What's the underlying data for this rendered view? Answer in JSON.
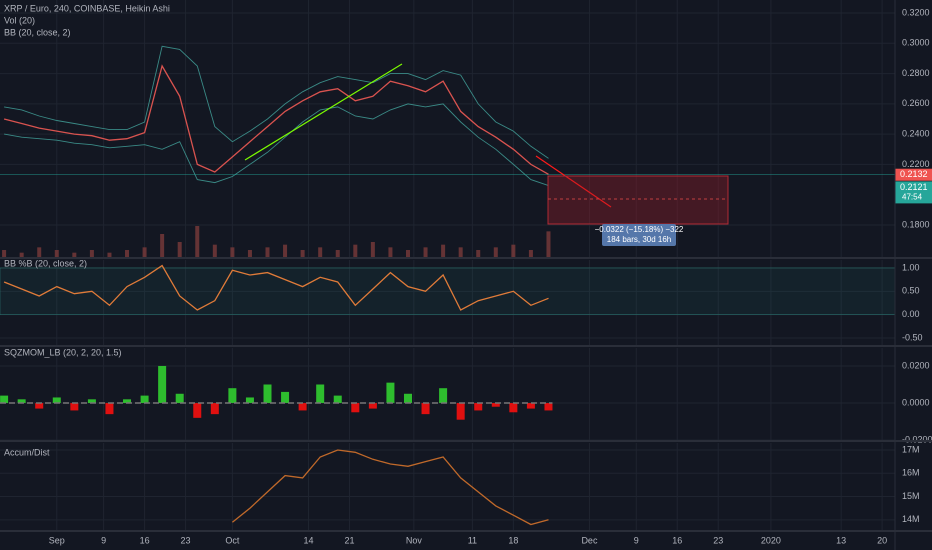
{
  "chart_data": [
    {
      "type": "line",
      "title": "XRP / Euro, 240, COINBASE, Heikin Ashi",
      "indicators": [
        "Vol (20)",
        "BB (20, close, 2)"
      ],
      "x": [
        -9,
        -6,
        -3,
        0,
        3,
        6,
        9,
        12,
        15,
        18,
        21,
        24,
        27,
        30,
        33,
        36,
        39,
        42,
        45,
        48,
        51,
        54,
        57,
        60,
        63,
        66,
        69,
        72,
        75,
        78,
        81,
        84
      ],
      "xlim": [
        -9.7,
        143.2
      ],
      "xticks": [
        {
          "value": 0,
          "label": "Sep"
        },
        {
          "value": 8,
          "label": "9"
        },
        {
          "value": 15,
          "label": "16"
        },
        {
          "value": 22,
          "label": "23"
        },
        {
          "value": 30,
          "label": "Oct"
        },
        {
          "value": 43,
          "label": "14"
        },
        {
          "value": 50,
          "label": "21"
        },
        {
          "value": 61,
          "label": "Nov"
        },
        {
          "value": 71,
          "label": "11"
        },
        {
          "value": 78,
          "label": "18"
        },
        {
          "value": 91,
          "label": "Dec"
        },
        {
          "value": 99,
          "label": "9"
        },
        {
          "value": 106,
          "label": "16"
        },
        {
          "value": 113,
          "label": "23"
        },
        {
          "value": 122,
          "label": "2020"
        },
        {
          "value": 134,
          "label": "13"
        },
        {
          "value": 141,
          "label": "20"
        }
      ],
      "ylim": [
        0.1582,
        0.3286
      ],
      "yticks": [
        {
          "value": 0.32,
          "label": "0.3200"
        },
        {
          "value": 0.3,
          "label": "0.3000"
        },
        {
          "value": 0.28,
          "label": "0.2800"
        },
        {
          "value": 0.26,
          "label": "0.2600"
        },
        {
          "value": 0.24,
          "label": "0.2400"
        },
        {
          "value": 0.22,
          "label": "0.2200"
        },
        {
          "value": 0.18,
          "label": "0.1800"
        }
      ],
      "series": [
        {
          "color": "#d9534f",
          "values": [
            0.25,
            0.247,
            0.244,
            0.242,
            0.24,
            0.239,
            0.236,
            0.237,
            0.241,
            0.285,
            0.265,
            0.22,
            0.215,
            0.225,
            0.235,
            0.245,
            0.255,
            0.262,
            0.268,
            0.27,
            0.262,
            0.265,
            0.275,
            0.272,
            0.268,
            0.275,
            0.255,
            0.245,
            0.238,
            0.23,
            0.22,
            0.2135
          ]
        },
        {
          "color": "#3a8a86",
          "values": [
            0.258,
            0.256,
            0.252,
            0.249,
            0.247,
            0.245,
            0.243,
            0.243,
            0.248,
            0.298,
            0.296,
            0.285,
            0.245,
            0.235,
            0.242,
            0.25,
            0.26,
            0.268,
            0.274,
            0.278,
            0.276,
            0.274,
            0.28,
            0.28,
            0.276,
            0.282,
            0.279,
            0.26,
            0.248,
            0.242,
            0.232,
            0.224
          ]
        },
        {
          "color": "#3a8a86",
          "values": [
            0.24,
            0.238,
            0.237,
            0.236,
            0.234,
            0.233,
            0.231,
            0.232,
            0.233,
            0.23,
            0.235,
            0.21,
            0.208,
            0.212,
            0.22,
            0.228,
            0.238,
            0.248,
            0.256,
            0.258,
            0.252,
            0.25,
            0.256,
            0.26,
            0.258,
            0.26,
            0.248,
            0.238,
            0.23,
            0.22,
            0.21,
            0.206
          ]
        }
      ],
      "volume": {
        "color": "#7a3b3b",
        "values": [
          3,
          2,
          4,
          3,
          2,
          3,
          2,
          3,
          4,
          9,
          6,
          12,
          5,
          4,
          3,
          4,
          5,
          3,
          4,
          3,
          5,
          6,
          4,
          3,
          4,
          5,
          4,
          3,
          4,
          5,
          3,
          10
        ]
      },
      "last_price": {
        "value": 0.2132,
        "label": "0.2132",
        "color": "#ef5350"
      },
      "bb_price": {
        "value": 0.2121,
        "label": "0.2121",
        "color": "#26a69a"
      },
      "countdown": "47:54",
      "measure": [
        "−0.0322 (−15.18%) −322",
        "184 bars, 30d 16h"
      ]
    },
    {
      "type": "line",
      "title": "BB %B (20, close, 2)",
      "ylim": [
        -0.67,
        1.17
      ],
      "yticks": [
        {
          "value": 1,
          "label": "1.00"
        },
        {
          "value": 0.5,
          "label": "0.50"
        },
        {
          "value": 0,
          "label": "0.00"
        },
        {
          "value": -0.5,
          "label": "-0.50"
        }
      ],
      "series": [
        {
          "color": "#e07b39",
          "values": [
            0.7,
            0.55,
            0.4,
            0.6,
            0.45,
            0.5,
            0.2,
            0.6,
            0.8,
            1.05,
            0.4,
            0.1,
            0.3,
            0.95,
            0.85,
            0.9,
            0.75,
            0.6,
            0.8,
            0.7,
            0.2,
            0.55,
            0.9,
            0.6,
            0.5,
            0.85,
            0.1,
            0.3,
            0.4,
            0.5,
            0.2,
            0.35
          ]
        }
      ]
    },
    {
      "type": "bar",
      "title": "SQZMOM_LB (20, 2, 20, 1.5)",
      "ylim": [
        -0.0205,
        0.0297
      ],
      "yticks": [
        {
          "value": 0.02,
          "label": "0.0200"
        },
        {
          "value": 0,
          "label": "0.0000"
        },
        {
          "value": -0.02,
          "label": "-0.0200"
        }
      ],
      "positive_color": "#2ebd2e",
      "negative_color": "#e01010",
      "values": [
        0.004,
        0.002,
        -0.003,
        0.003,
        -0.004,
        0.002,
        -0.006,
        0.002,
        0.004,
        0.02,
        0.005,
        -0.008,
        -0.006,
        0.008,
        0.003,
        0.01,
        0.006,
        -0.004,
        0.01,
        0.004,
        -0.005,
        -0.003,
        0.011,
        0.005,
        -0.006,
        0.008,
        -0.009,
        -0.004,
        -0.002,
        -0.005,
        -0.003,
        -0.004
      ]
    },
    {
      "type": "line",
      "title": "Accum/Dist",
      "ylim": [
        13520000,
        17300000
      ],
      "yticks": [
        {
          "value": 17000000,
          "label": "17M"
        },
        {
          "value": 16000000,
          "label": "16M"
        },
        {
          "value": 15000000,
          "label": "15M"
        },
        {
          "value": 14000000,
          "label": "14M"
        }
      ],
      "series": [
        {
          "color": "#c0692a",
          "values": [
            null,
            null,
            null,
            null,
            null,
            null,
            null,
            null,
            null,
            null,
            null,
            null,
            null,
            13900000,
            14500000,
            15200000,
            15900000,
            15800000,
            16700000,
            17000000,
            16900000,
            16600000,
            16400000,
            16300000,
            16500000,
            16700000,
            15800000,
            15200000,
            14600000,
            14200000,
            13800000,
            14000000
          ]
        }
      ]
    }
  ]
}
